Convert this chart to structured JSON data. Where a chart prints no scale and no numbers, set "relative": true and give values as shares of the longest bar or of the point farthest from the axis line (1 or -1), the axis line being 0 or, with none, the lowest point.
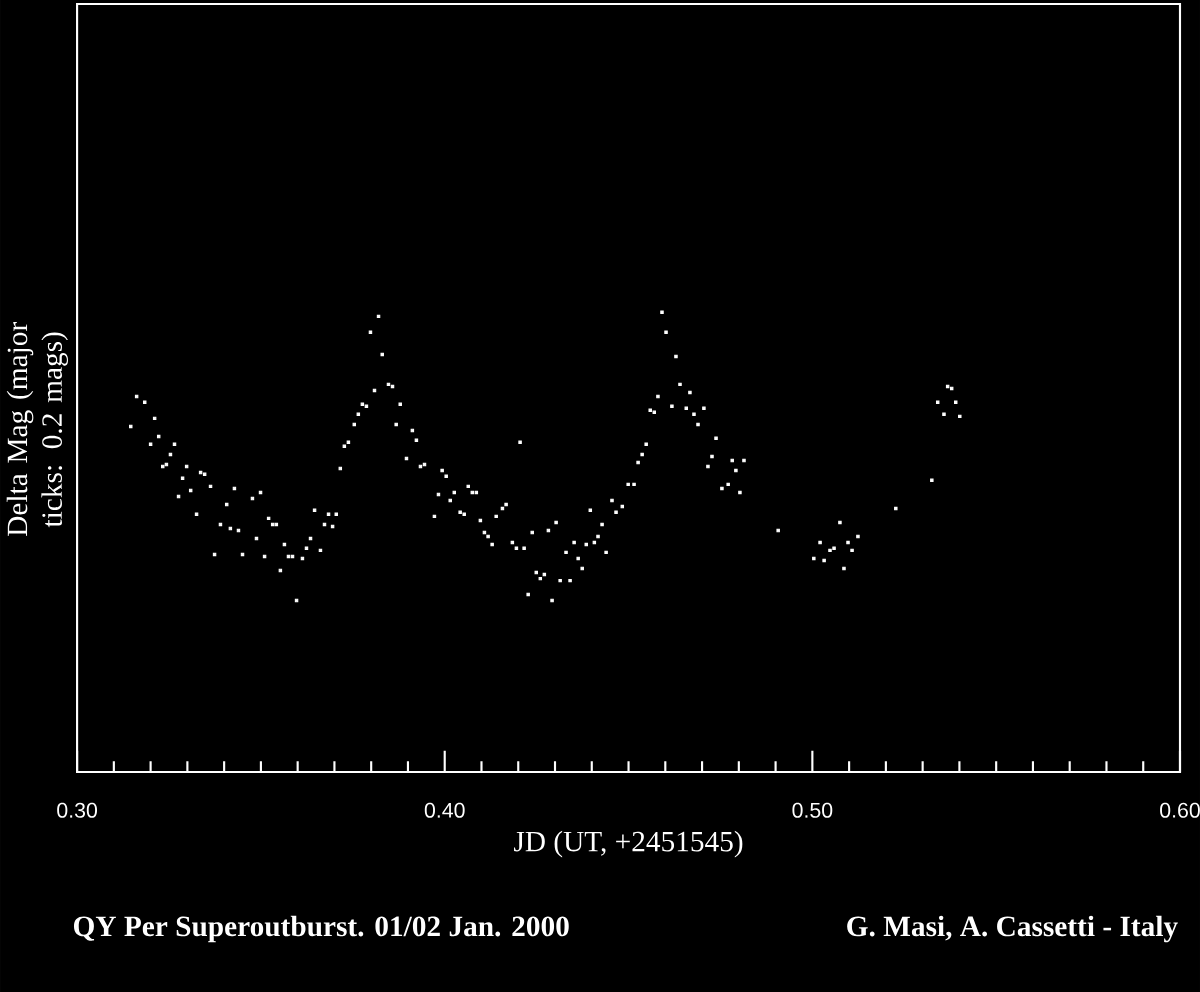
{
  "chart_data": {
    "type": "scatter",
    "title": "QY Per  Superoutburst. 01/02 Jan. 2000",
    "xlabel": "JD (UT, +2451545)",
    "ylabel": "Delta Mag (major ticks: 0.2 mags)",
    "annotations": [
      "G. Masi, A. Cassetti - Italy"
    ],
    "relative": true,
    "color": "#ffffff",
    "marker": "square",
    "xlim": [
      0.3,
      0.6
    ],
    "xticks": [
      {
        "value": 0.3,
        "label": "0.30"
      },
      {
        "value": 0.4,
        "label": "0.40"
      },
      {
        "value": 0.5,
        "label": "0.50"
      },
      {
        "value": 0.6,
        "label": "0.60"
      }
    ],
    "x": [
      0.3146,
      0.3162,
      0.3184,
      0.3211,
      0.32,
      0.3222,
      0.3265,
      0.3254,
      0.3233,
      0.3243,
      0.3298,
      0.3287,
      0.3276,
      0.3309,
      0.3336,
      0.3347,
      0.3325,
      0.3363,
      0.3374,
      0.339,
      0.3407,
      0.3417,
      0.3428,
      0.3439,
      0.345,
      0.3477,
      0.3488,
      0.3499,
      0.351,
      0.3521,
      0.3532,
      0.3542,
      0.3553,
      0.3564,
      0.3575,
      0.3586,
      0.3597,
      0.3613,
      0.3624,
      0.3635,
      0.3646,
      0.3662,
      0.3673,
      0.3684,
      0.3695,
      0.3705,
      0.3716,
      0.3727,
      0.3738,
      0.3754,
      0.3765,
      0.3776,
      0.3787,
      0.3809,
      0.3798,
      0.382,
      0.383,
      0.3847,
      0.3858,
      0.3868,
      0.3879,
      0.3912,
      0.3923,
      0.3896,
      0.3934,
      0.3945,
      0.3993,
      0.4004,
      0.3983,
      0.3972,
      0.4015,
      0.4026,
      0.4042,
      0.4053,
      0.4064,
      0.4075,
      0.4086,
      0.4097,
      0.4108,
      0.4118,
      0.4129,
      0.414,
      0.4157,
      0.4167,
      0.4184,
      0.4195,
      0.4205,
      0.4216,
      0.4227,
      0.4238,
      0.4249,
      0.426,
      0.4271,
      0.4282,
      0.4292,
      0.4303,
      0.4314,
      0.433,
      0.4341,
      0.4352,
      0.4363,
      0.4374,
      0.4385,
      0.4396,
      0.4407,
      0.4417,
      0.4428,
      0.4439,
      0.4455,
      0.4466,
      0.4483,
      0.4499,
      0.4515,
      0.4526,
      0.4537,
      0.4548,
      0.4559,
      0.457,
      0.458,
      0.4591,
      0.4602,
      0.4629,
      0.464,
      0.4618,
      0.4657,
      0.4667,
      0.4678,
      0.4705,
      0.4689,
      0.4738,
      0.4727,
      0.4716,
      0.4782,
      0.4814,
      0.4792,
      0.4771,
      0.4754,
      0.4803,
      0.4907,
      0.5075,
      0.5021,
      0.5059,
      0.5048,
      0.5004,
      0.5032,
      0.5097,
      0.5124,
      0.5108,
      0.5086,
      0.5227,
      0.5325,
      0.5368,
      0.5379,
      0.5341,
      0.539,
      0.5358,
      0.5401
    ],
    "values": [
      0.604,
      0.708,
      0.688,
      0.632,
      0.542,
      0.569,
      0.542,
      0.507,
      0.465,
      0.472,
      0.465,
      0.424,
      0.361,
      0.382,
      0.444,
      0.438,
      0.299,
      0.396,
      0.16,
      0.264,
      0.333,
      0.25,
      0.389,
      0.243,
      0.16,
      0.354,
      0.215,
      0.375,
      0.153,
      0.285,
      0.264,
      0.264,
      0.104,
      0.194,
      0.153,
      0.153,
      0.0,
      0.146,
      0.181,
      0.215,
      0.313,
      0.174,
      0.264,
      0.299,
      0.257,
      0.299,
      0.458,
      0.535,
      0.549,
      0.611,
      0.646,
      0.681,
      0.674,
      0.729,
      0.931,
      0.986,
      0.854,
      0.75,
      0.743,
      0.611,
      0.681,
      0.59,
      0.556,
      0.493,
      0.465,
      0.472,
      0.451,
      0.431,
      0.368,
      0.292,
      0.347,
      0.375,
      0.306,
      0.299,
      0.396,
      0.375,
      0.375,
      0.278,
      0.236,
      0.222,
      0.194,
      0.292,
      0.319,
      0.333,
      0.201,
      0.181,
      0.549,
      0.181,
      0.021,
      0.236,
      0.097,
      0.076,
      0.09,
      0.243,
      0.0,
      0.271,
      0.069,
      0.167,
      0.069,
      0.201,
      0.146,
      0.111,
      0.194,
      0.313,
      0.201,
      0.222,
      0.264,
      0.167,
      0.347,
      0.306,
      0.326,
      0.403,
      0.403,
      0.479,
      0.507,
      0.542,
      0.66,
      0.653,
      0.708,
      1.0,
      0.931,
      0.847,
      0.75,
      0.674,
      0.667,
      0.722,
      0.646,
      0.667,
      0.611,
      0.563,
      0.5,
      0.465,
      0.486,
      0.486,
      0.451,
      0.403,
      0.389,
      0.375,
      0.243,
      0.271,
      0.201,
      0.181,
      0.174,
      0.146,
      0.139,
      0.201,
      0.222,
      0.174,
      0.111,
      0.319,
      0.417,
      0.743,
      0.736,
      0.688,
      0.688,
      0.646,
      0.639
    ]
  }
}
